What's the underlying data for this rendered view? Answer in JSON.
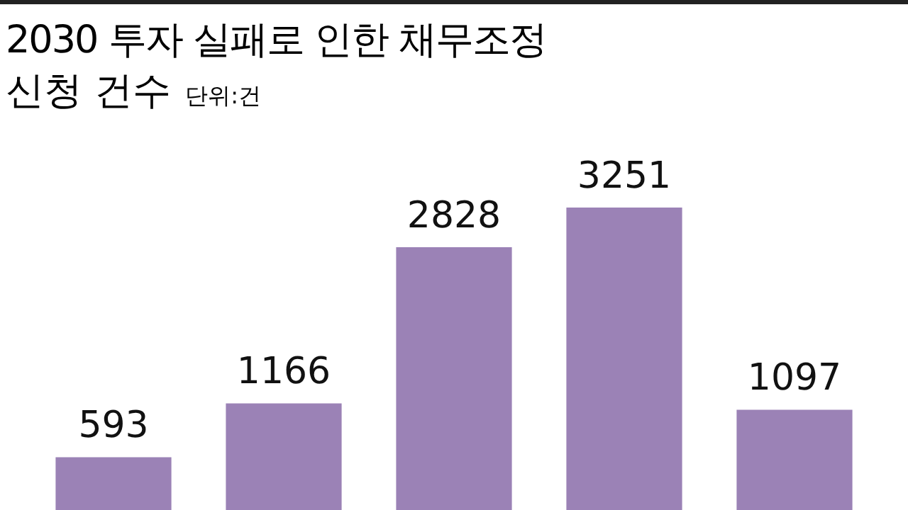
{
  "chart_data": {
    "type": "bar",
    "title": "2030 투자 실패로 인한 채무조정",
    "subtitle": "신청 건수",
    "annotations": [
      "단위:건"
    ],
    "categories": [
      null,
      null,
      null,
      null,
      null
    ],
    "values": [
      593,
      1166,
      2828,
      3251,
      1097
    ],
    "color": "#9b82b6",
    "data_labels": true
  }
}
